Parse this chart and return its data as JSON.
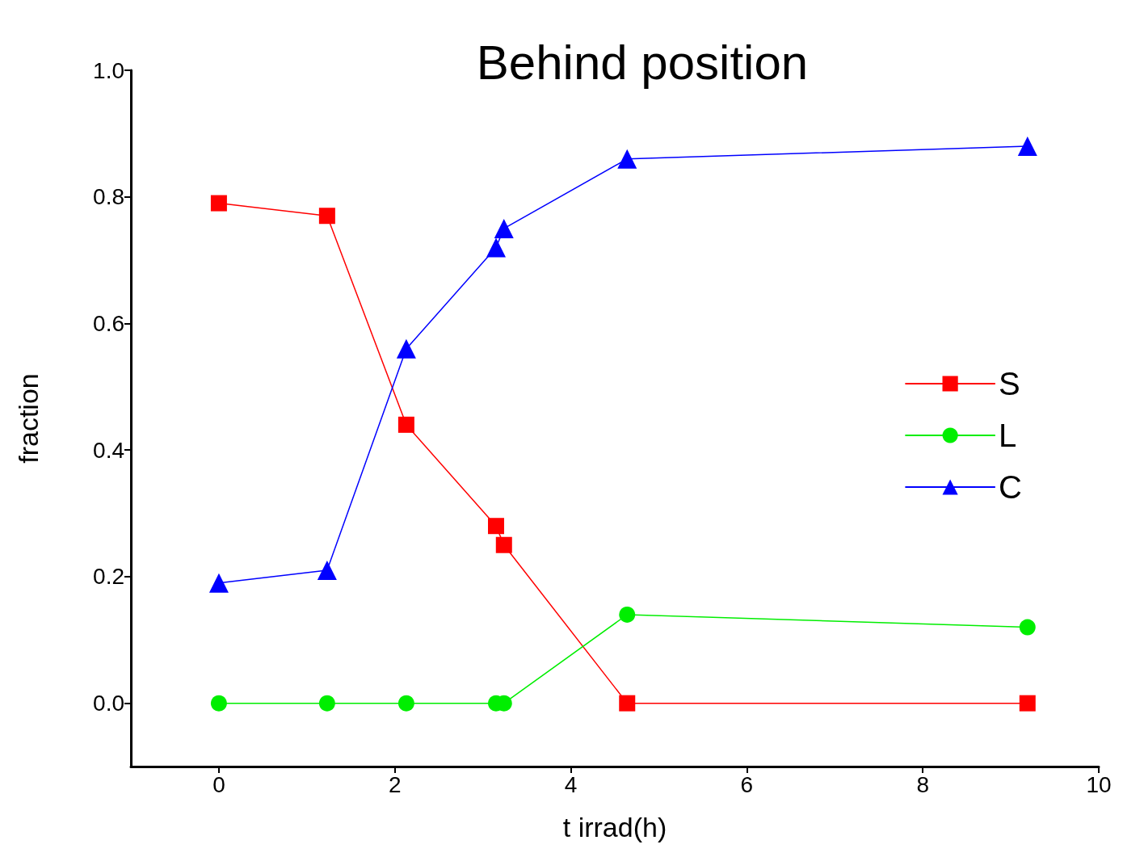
{
  "chart_data": {
    "type": "line",
    "title": "Behind position",
    "xlabel": "t irrad(h)",
    "ylabel": "fraction",
    "x": [
      0,
      1.23,
      2.13,
      3.15,
      3.24,
      4.64,
      9.19
    ],
    "series": [
      {
        "name": "S",
        "color": "#ff0000",
        "marker": "square",
        "values": [
          0.79,
          0.77,
          0.44,
          0.28,
          0.25,
          0,
          0
        ]
      },
      {
        "name": "L",
        "color": "#00ee00",
        "marker": "circle",
        "values": [
          0,
          0,
          0,
          0,
          0,
          0.14,
          0.12
        ]
      },
      {
        "name": "C",
        "color": "#0000ff",
        "marker": "triangle",
        "values": [
          0.19,
          0.21,
          0.56,
          0.72,
          0.75,
          0.86,
          0.88
        ]
      }
    ],
    "xlim": [
      -1,
      10
    ],
    "xticks": [
      0,
      2,
      4,
      6,
      8,
      10
    ],
    "ylim": [
      -0.1,
      1.0
    ],
    "yticks": [
      {
        "value": 0,
        "label": "0.0"
      },
      {
        "value": 0.2,
        "label": "0.2"
      },
      {
        "value": 0.4,
        "label": "0.4"
      },
      {
        "value": 0.6,
        "label": "0.6"
      },
      {
        "value": 0.8,
        "label": "0.8"
      },
      {
        "value": 1,
        "label": "1.0"
      }
    ],
    "legend": "right",
    "grid": false,
    "line_style": "solid"
  }
}
